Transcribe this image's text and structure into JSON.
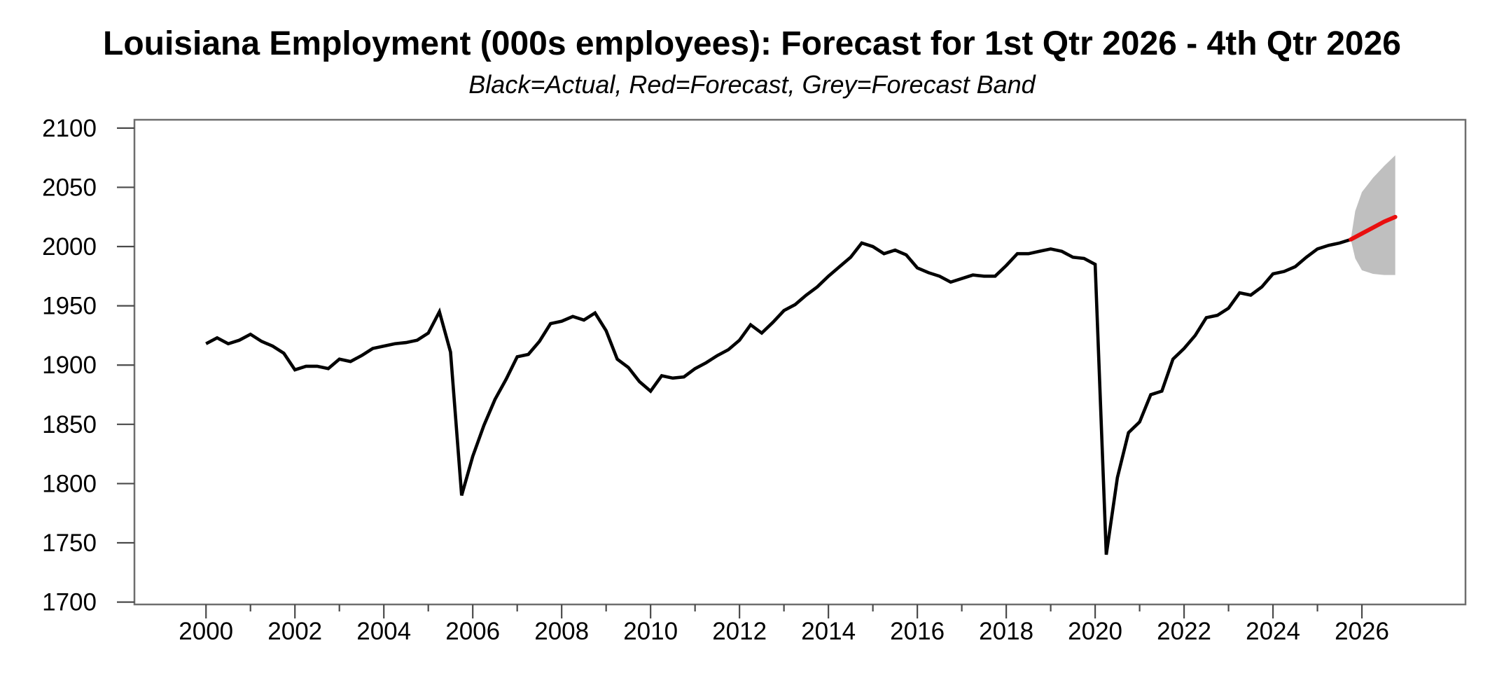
{
  "title": "Louisiana Employment (000s employees): Forecast for 1st Qtr 2026 - 4th Qtr 2026",
  "subtitle": "Black=Actual, Red=Forecast, Grey=Forecast Band",
  "chart_data": {
    "type": "line",
    "title": "Louisiana Employment (000s employees): Forecast for 1st Qtr 2026 - 4th Qtr 2026",
    "legend_note": "Black=Actual, Red=Forecast, Grey=Forecast Band",
    "xlabel": "",
    "ylabel": "",
    "grid": false,
    "x_axis": {
      "min": 1998.39,
      "max": 2028.33,
      "major_ticks": [
        2000,
        2002,
        2004,
        2006,
        2008,
        2010,
        2012,
        2014,
        2016,
        2018,
        2020,
        2022,
        2024,
        2026
      ],
      "minor_ticks": [
        2001,
        2003,
        2005,
        2007,
        2009,
        2011,
        2013,
        2015,
        2017,
        2019,
        2021,
        2023,
        2025
      ]
    },
    "y_axis": {
      "min": 1698,
      "max": 2107,
      "ticks": [
        1700,
        1750,
        1800,
        1850,
        1900,
        1950,
        2000,
        2050,
        2100
      ]
    },
    "colors": {
      "actual": "#000000",
      "forecast": "#e90f0f",
      "band": "#bfbfbf",
      "frame": "#6e6e6e",
      "tick": "#4a4a4a"
    },
    "series": [
      {
        "name": "Actual",
        "type": "line",
        "color": "#000000",
        "x_start": 2000.0,
        "x_step": 0.25,
        "values": [
          1918,
          1923,
          1918,
          1921,
          1926,
          1920,
          1916,
          1910,
          1896,
          1899,
          1899,
          1897,
          1905,
          1903,
          1908,
          1914,
          1916,
          1918,
          1919,
          1921,
          1927,
          1945,
          1911,
          1790,
          1823,
          1849,
          1871,
          1888,
          1907,
          1909,
          1920,
          1935,
          1937,
          1941,
          1938,
          1944,
          1929,
          1905,
          1898,
          1886,
          1878,
          1891,
          1889,
          1890,
          1897,
          1902,
          1908,
          1913,
          1921,
          1934,
          1927,
          1936,
          1946,
          1951,
          1959,
          1966,
          1975,
          1983,
          1991,
          2003,
          2000,
          1994,
          1997,
          1993,
          1982,
          1978,
          1975,
          1970,
          1973,
          1976,
          1975,
          1975,
          1984,
          1994,
          1994,
          1996,
          1998,
          1996,
          1991,
          1990,
          1985,
          1740,
          1805,
          1843,
          1852,
          1875,
          1878,
          1905,
          1914,
          1925,
          1940,
          1942,
          1948,
          1961,
          1959,
          1966,
          1977,
          1979,
          1983,
          1991,
          1998,
          2001,
          2003,
          2006
        ]
      },
      {
        "name": "Forecast",
        "type": "line",
        "color": "#e90f0f",
        "x": [
          2025.75,
          2026.0,
          2026.25,
          2026.5,
          2026.75
        ],
        "values": [
          2006,
          2011,
          2016,
          2021,
          2025
        ]
      },
      {
        "name": "Forecast Band",
        "type": "band",
        "color": "#bfbfbf",
        "x": [
          2025.75,
          2025.85,
          2026.0,
          2026.25,
          2026.5,
          2026.75
        ],
        "lower": [
          2006,
          1990,
          1980,
          1977,
          1976,
          1976
        ],
        "upper": [
          2006,
          2030,
          2046,
          2058,
          2068,
          2077
        ]
      }
    ]
  }
}
